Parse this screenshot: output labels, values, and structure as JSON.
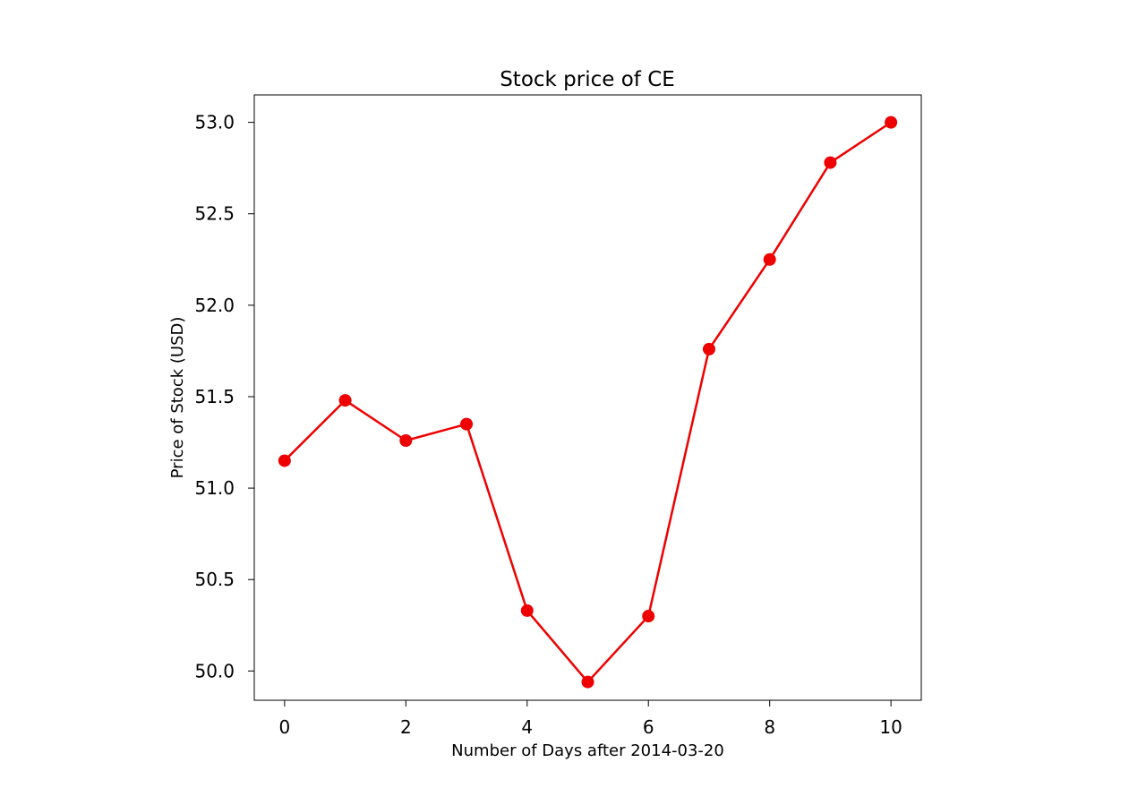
{
  "chart_data": {
    "type": "line",
    "title": "Stock price of CE",
    "xlabel": "Number of Days after 2014-03-20",
    "ylabel": "Price of Stock (USD)",
    "xlim": [
      -0.5,
      10.5
    ],
    "ylim": [
      49.84,
      53.15
    ],
    "x_ticks": [
      0,
      2,
      4,
      6,
      8,
      10
    ],
    "x_tick_labels": [
      "0",
      "2",
      "4",
      "6",
      "8",
      "10"
    ],
    "y_ticks": [
      50.0,
      50.5,
      51.0,
      51.5,
      52.0,
      52.5,
      53.0
    ],
    "y_tick_labels": [
      "50.0",
      "50.5",
      "51.0",
      "51.5",
      "52.0",
      "52.5",
      "53.0"
    ],
    "grid": false,
    "series": [
      {
        "color": "#ee0000",
        "marker": "circle",
        "x": [
          0,
          1,
          2,
          3,
          4,
          5,
          6,
          7,
          8,
          9,
          10
        ],
        "values": [
          51.15,
          51.48,
          51.26,
          51.35,
          50.33,
          49.94,
          50.3,
          51.76,
          52.25,
          52.78,
          53.0
        ]
      }
    ]
  }
}
